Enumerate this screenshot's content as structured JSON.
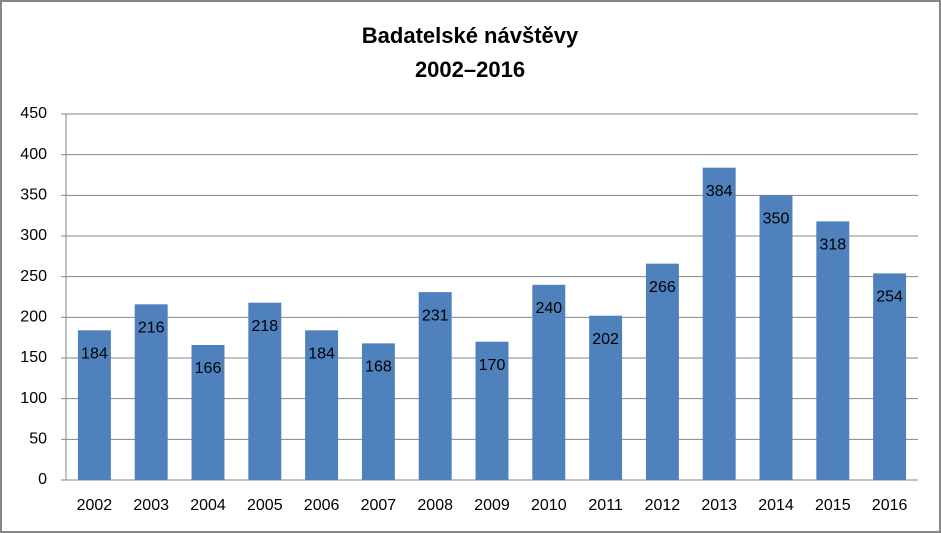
{
  "chart_data": {
    "type": "bar",
    "title": "Badatelské návštěvy",
    "subtitle": "2002–2016",
    "categories": [
      "2002",
      "2003",
      "2004",
      "2005",
      "2006",
      "2007",
      "2008",
      "2009",
      "2010",
      "2011",
      "2012",
      "2013",
      "2014",
      "2015",
      "2016"
    ],
    "values": [
      184,
      216,
      166,
      218,
      184,
      168,
      231,
      170,
      240,
      202,
      266,
      384,
      350,
      318,
      254
    ],
    "color": "#4f81bd",
    "ylim": [
      0,
      450
    ],
    "yticks": [
      0,
      50,
      100,
      150,
      200,
      250,
      300,
      350,
      400,
      450
    ],
    "grid": true
  }
}
